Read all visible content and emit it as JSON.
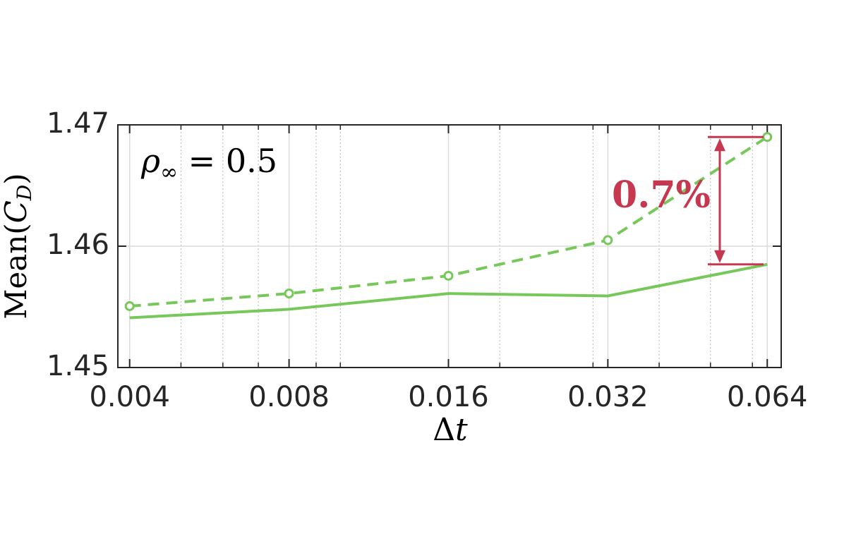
{
  "chart_data": {
    "type": "line",
    "x": [
      0.004,
      0.008,
      0.016,
      0.032,
      0.064
    ],
    "series": [
      {
        "color": "#77c85a",
        "dash": true,
        "marker": "circle",
        "values": [
          1.45506,
          1.4561,
          1.45756,
          1.4605,
          1.469
        ]
      },
      {
        "color": "#77c85a",
        "dash": false,
        "values": [
          1.4541,
          1.4548,
          1.4561,
          1.4559,
          1.4585
        ]
      }
    ],
    "xlim": [
      0.0038,
      0.068
    ],
    "xscale": "log",
    "xticks": [
      0.004,
      0.008,
      0.016,
      0.032,
      0.064
    ],
    "xminorticks": [
      0.005,
      0.006,
      0.007,
      0.009,
      0.01,
      0.02,
      0.03,
      0.04,
      0.05,
      0.06
    ],
    "ylim": [
      1.45,
      1.47
    ],
    "yticks": [
      1.45,
      1.46,
      1.47
    ],
    "grid": true,
    "xlabel": [
      "Δ",
      "t"
    ],
    "ylabel": [
      "Mean(",
      "C",
      "D",
      ")"
    ],
    "annotations": [
      {
        "text": [
          "ρ",
          "∞",
          " = 0.5"
        ]
      },
      {
        "text": "0.7%",
        "color": "#c5384f"
      }
    ]
  }
}
